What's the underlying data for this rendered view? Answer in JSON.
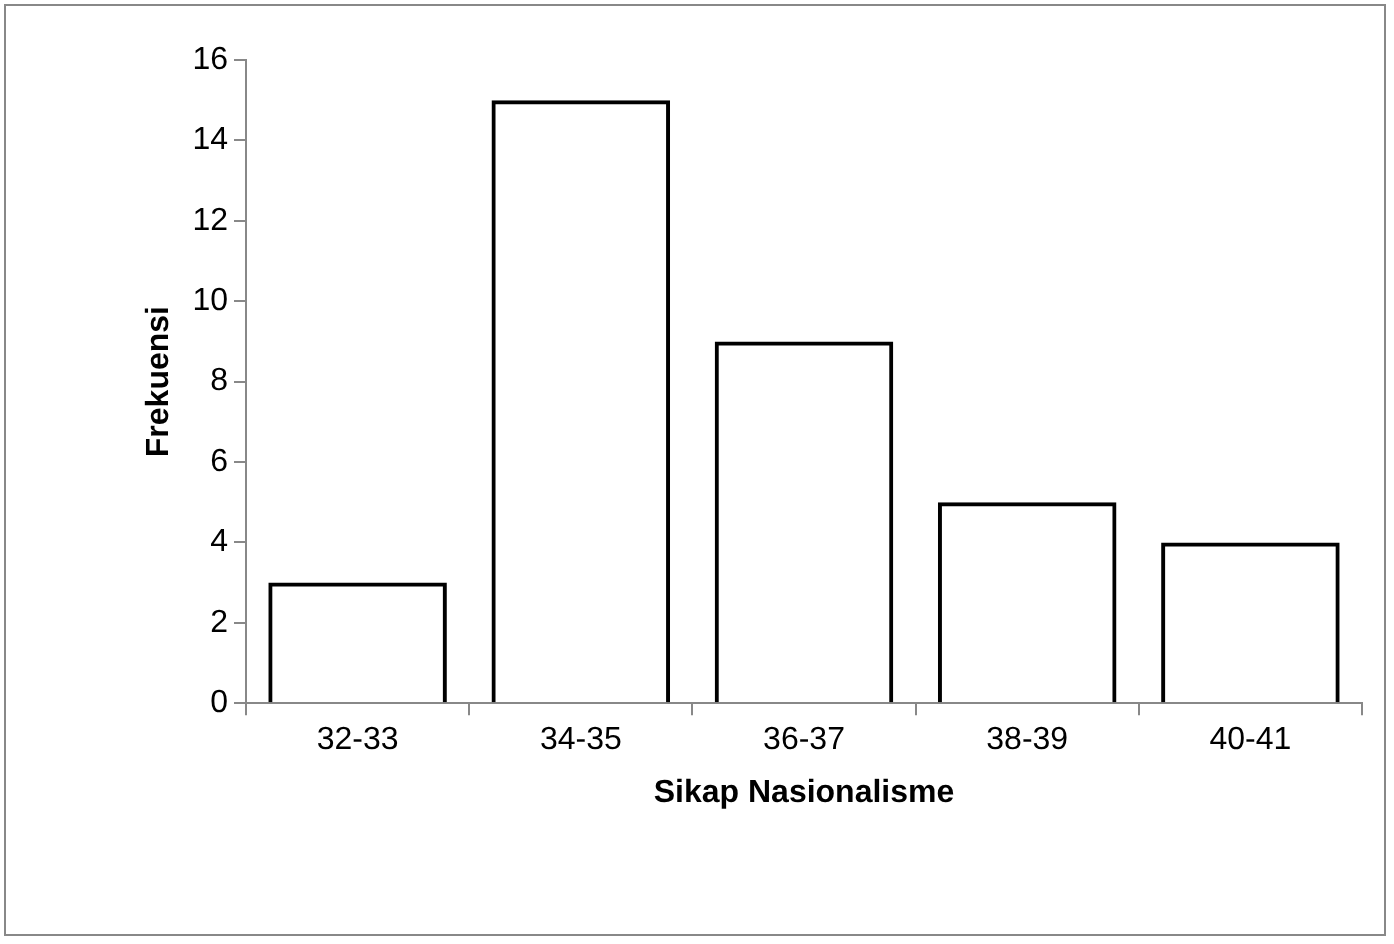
{
  "chart_data": {
    "type": "bar",
    "xlabel": "Sikap Nasionalisme",
    "ylabel": "Frekuensi",
    "categories": [
      "32-33",
      "34-35",
      "36-37",
      "38-39",
      "40-41"
    ],
    "values": [
      3,
      15,
      9,
      5,
      4
    ],
    "color": "#000000",
    "ylim": [
      0,
      16
    ],
    "yticks": [
      0,
      2,
      4,
      6,
      8,
      10,
      12,
      14,
      16
    ]
  }
}
